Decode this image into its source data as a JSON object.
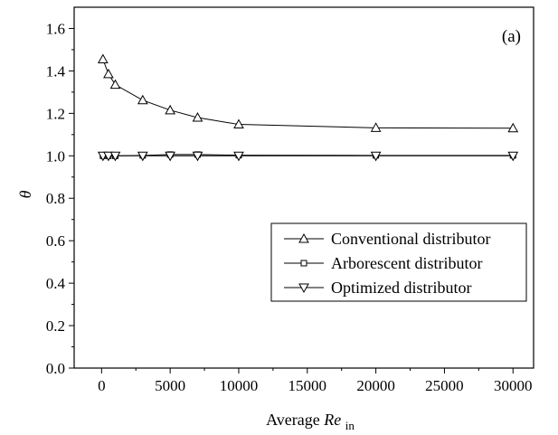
{
  "chart_data": {
    "type": "line",
    "panel_label": "(a)",
    "xlabel": "Average",
    "xlabel_italic": "Re",
    "xlabel_sub": "in",
    "ylabel": "θ",
    "xlim": [
      -2000,
      31500
    ],
    "ylim": [
      0.0,
      1.7
    ],
    "xticks": [
      0,
      5000,
      10000,
      15000,
      20000,
      25000,
      30000
    ],
    "yticks": [
      0.0,
      0.2,
      0.4,
      0.6,
      0.8,
      1.0,
      1.2,
      1.4,
      1.6
    ],
    "ytick_labels": [
      "0.0",
      "0.2",
      "0.4",
      "0.6",
      "0.8",
      "1.0",
      "1.2",
      "1.4",
      "1.6"
    ],
    "grid": false,
    "legend_position": "lower-right",
    "series": [
      {
        "name": "Conventional distributor",
        "marker": "triangle-up",
        "x": [
          100,
          500,
          1000,
          3000,
          5000,
          7000,
          10000,
          20000,
          30000
        ],
        "y": [
          1.455,
          1.385,
          1.335,
          1.262,
          1.215,
          1.18,
          1.148,
          1.132,
          1.13
        ]
      },
      {
        "name": "Arborescent distributor",
        "marker": "square",
        "x": [
          100,
          500,
          1000,
          3000,
          5000,
          7000,
          10000,
          20000,
          30000
        ],
        "y": [
          1.0,
          1.0,
          1.0,
          1.002,
          1.006,
          1.006,
          1.003,
          1.002,
          1.002
        ]
      },
      {
        "name": "Optimized distributor",
        "marker": "triangle-down",
        "x": [
          100,
          500,
          1000,
          3000,
          5000,
          7000,
          10000,
          20000,
          30000
        ],
        "y": [
          1.0,
          1.0,
          1.0,
          1.0,
          1.0,
          1.0,
          1.0,
          1.0,
          1.0
        ]
      }
    ]
  }
}
